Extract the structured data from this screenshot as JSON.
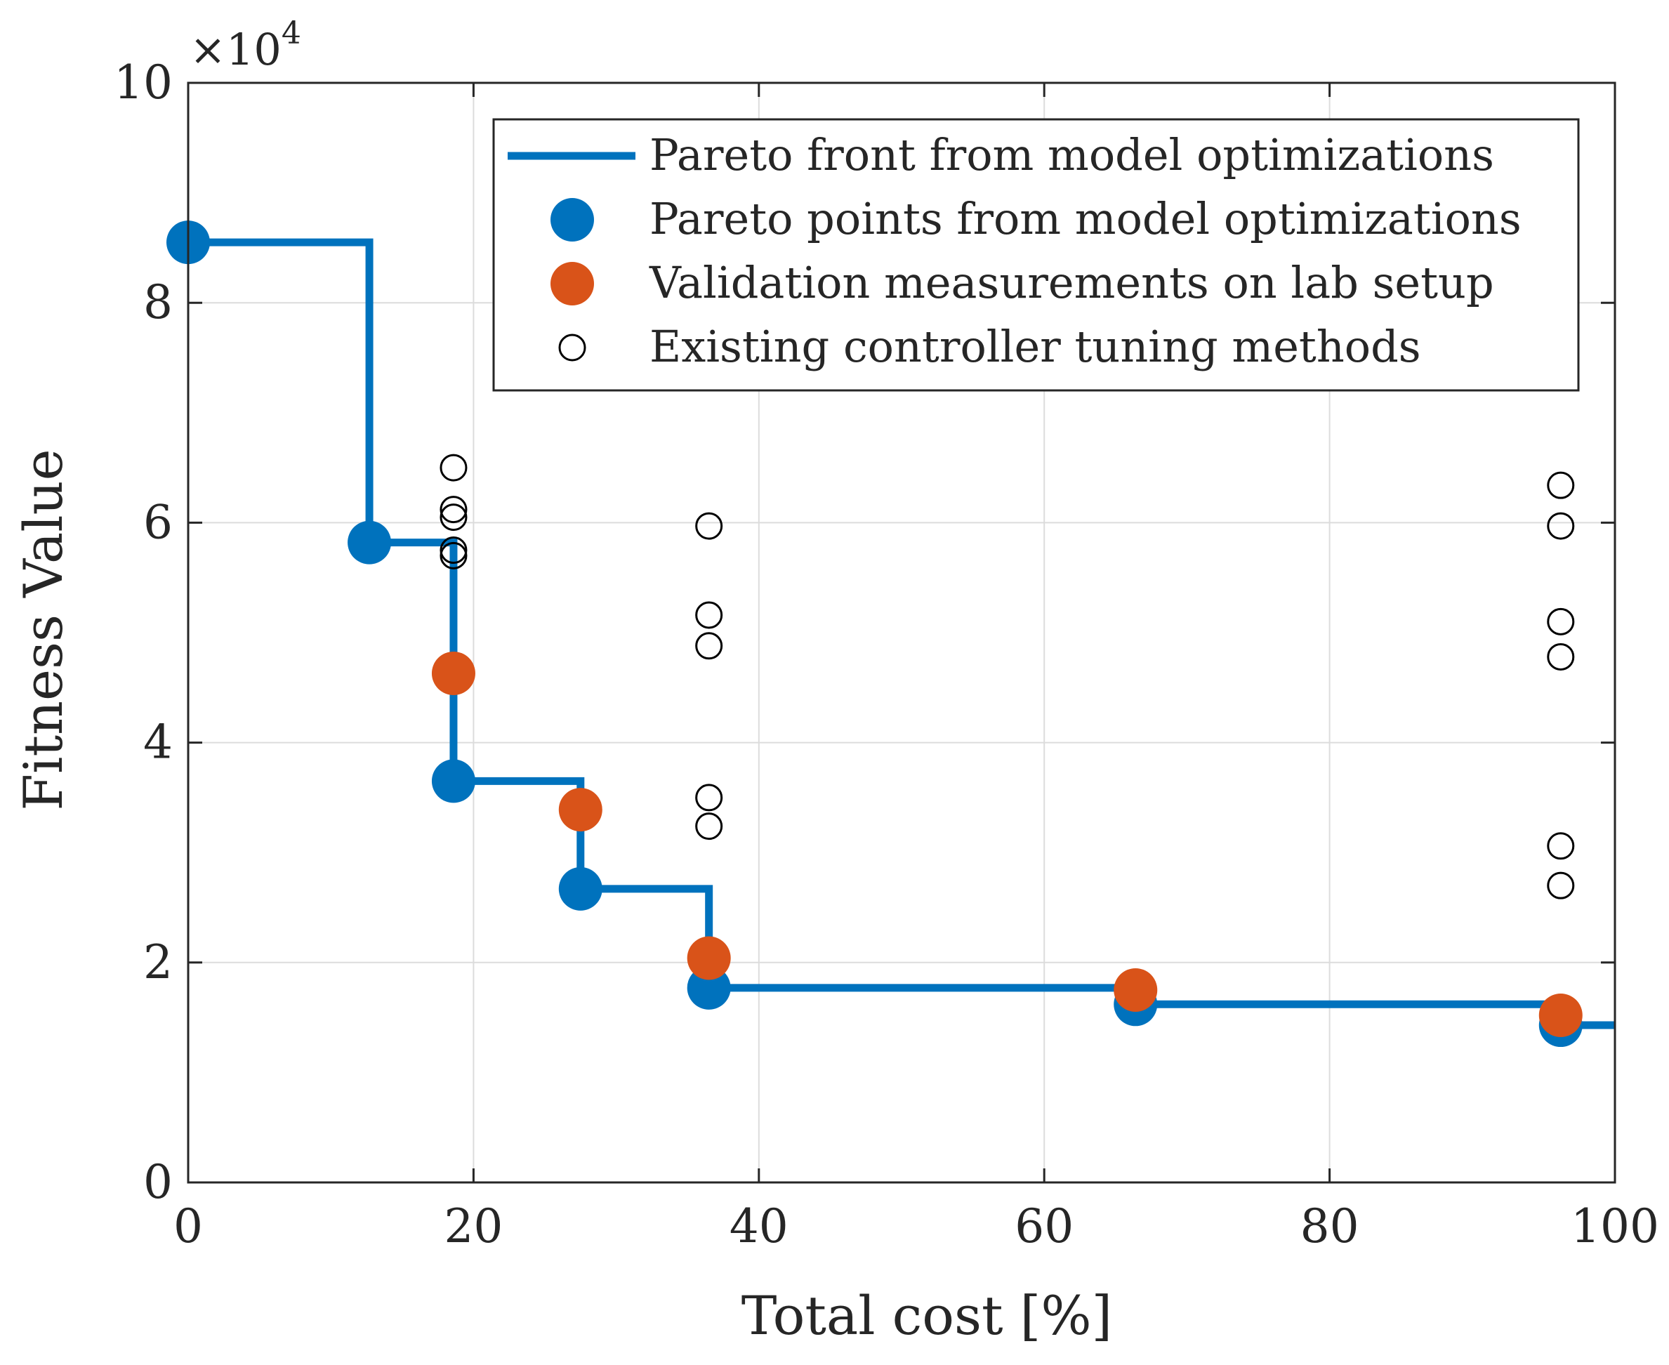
{
  "chart_data": {
    "type": "line",
    "xlabel": "Total cost [%]",
    "ylabel": "Fitness Value",
    "y_exponent_label": {
      "base": "×10",
      "power": "4"
    },
    "xlim": [
      0,
      100
    ],
    "ylim": [
      0,
      10
    ],
    "y_scale": 10000,
    "xticks": [
      0,
      20,
      40,
      60,
      80,
      100
    ],
    "yticks": [
      0,
      2,
      4,
      6,
      8,
      10
    ],
    "xtick_labels": [
      "0",
      "20",
      "40",
      "60",
      "80",
      "100"
    ],
    "ytick_labels": [
      "0",
      "2",
      "4",
      "6",
      "8",
      "10"
    ],
    "grid": true,
    "legend_position": "top-right",
    "legend": [
      "Pareto front from model optimizations",
      "Pareto points from model optimizations",
      "Validation measurements on lab setup",
      "Existing controller tuning methods"
    ],
    "colors": {
      "blue": "#0072BD",
      "orange": "#D95319",
      "black": "#000000",
      "axis": "#262626",
      "grid": "#dcdcdc"
    },
    "series": [
      {
        "name": "Pareto front from model optimizations",
        "kind": "step",
        "x": [
          0,
          12.7,
          18.6,
          27.5,
          36.5,
          66.4,
          96.2,
          100
        ],
        "y": [
          8.55,
          5.82,
          3.65,
          2.67,
          1.77,
          1.62,
          1.43,
          1.43
        ]
      },
      {
        "name": "Pareto points from model optimizations",
        "kind": "scatter-filled",
        "x": [
          0,
          12.7,
          18.6,
          27.5,
          36.5,
          66.4,
          96.2
        ],
        "y": [
          8.55,
          5.82,
          3.65,
          2.67,
          1.77,
          1.62,
          1.43
        ]
      },
      {
        "name": "Validation measurements on lab setup",
        "kind": "scatter-filled",
        "x": [
          18.6,
          27.5,
          36.5,
          66.4,
          96.2
        ],
        "y": [
          4.63,
          3.39,
          2.04,
          1.75,
          1.52
        ]
      },
      {
        "name": "Existing controller tuning methods",
        "kind": "scatter-open",
        "x": [
          18.6,
          18.6,
          18.6,
          18.6,
          18.6,
          36.5,
          36.5,
          36.5,
          36.5,
          36.5,
          96.2,
          96.2,
          96.2,
          96.2,
          96.2,
          96.2
        ],
        "y": [
          6.5,
          6.12,
          6.05,
          5.75,
          5.7,
          5.97,
          5.16,
          4.88,
          3.5,
          3.24,
          6.34,
          5.97,
          5.1,
          4.78,
          3.06,
          2.7
        ]
      }
    ]
  }
}
